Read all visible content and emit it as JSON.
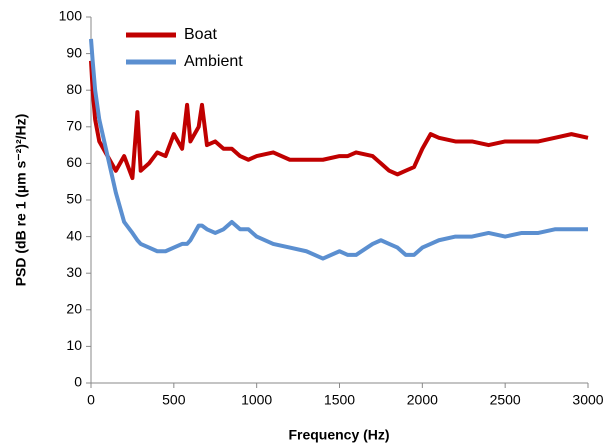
{
  "chart_data": {
    "type": "line",
    "xlabel": "Frequency (Hz)",
    "ylabel": "PSD (dB re 1 (µm s⁻²)²/Hz)",
    "x": [
      0,
      10,
      25,
      50,
      100,
      150,
      200,
      250,
      280,
      300,
      350,
      400,
      450,
      500,
      550,
      580,
      600,
      650,
      670,
      700,
      750,
      800,
      850,
      900,
      950,
      1000,
      1100,
      1200,
      1300,
      1400,
      1500,
      1550,
      1600,
      1700,
      1750,
      1800,
      1850,
      1900,
      1950,
      2000,
      2050,
      2100,
      2200,
      2300,
      2400,
      2500,
      2600,
      2700,
      2800,
      2900,
      3000
    ],
    "series": [
      {
        "name": "Boat",
        "color": "#c00000",
        "values": [
          88,
          80,
          72,
          66,
          62,
          58,
          62,
          56,
          74,
          58,
          60,
          63,
          62,
          68,
          64,
          76,
          66,
          70,
          76,
          65,
          66,
          64,
          64,
          62,
          61,
          62,
          63,
          61,
          61,
          61,
          62,
          62,
          63,
          62,
          60,
          58,
          57,
          58,
          59,
          64,
          68,
          67,
          66,
          66,
          65,
          66,
          66,
          66,
          67,
          68,
          67
        ]
      },
      {
        "name": "Ambient",
        "color": "#5b8fd0",
        "values": [
          94,
          88,
          80,
          72,
          62,
          52,
          44,
          41,
          39,
          38,
          37,
          36,
          36,
          37,
          38,
          38,
          39,
          43,
          43,
          42,
          41,
          42,
          44,
          42,
          42,
          40,
          38,
          37,
          36,
          34,
          36,
          35,
          35,
          38,
          39,
          38,
          37,
          35,
          35,
          37,
          38,
          39,
          40,
          40,
          41,
          40,
          41,
          41,
          42,
          42,
          42
        ]
      }
    ],
    "xlim": [
      0,
      3000
    ],
    "xticks": [
      0,
      500,
      1000,
      1500,
      2000,
      2500,
      3000
    ],
    "ylim": [
      0,
      100
    ],
    "yticks": [
      0,
      10,
      20,
      30,
      40,
      50,
      60,
      70,
      80,
      90,
      100
    ],
    "grid": false,
    "legend": "upper-left"
  }
}
